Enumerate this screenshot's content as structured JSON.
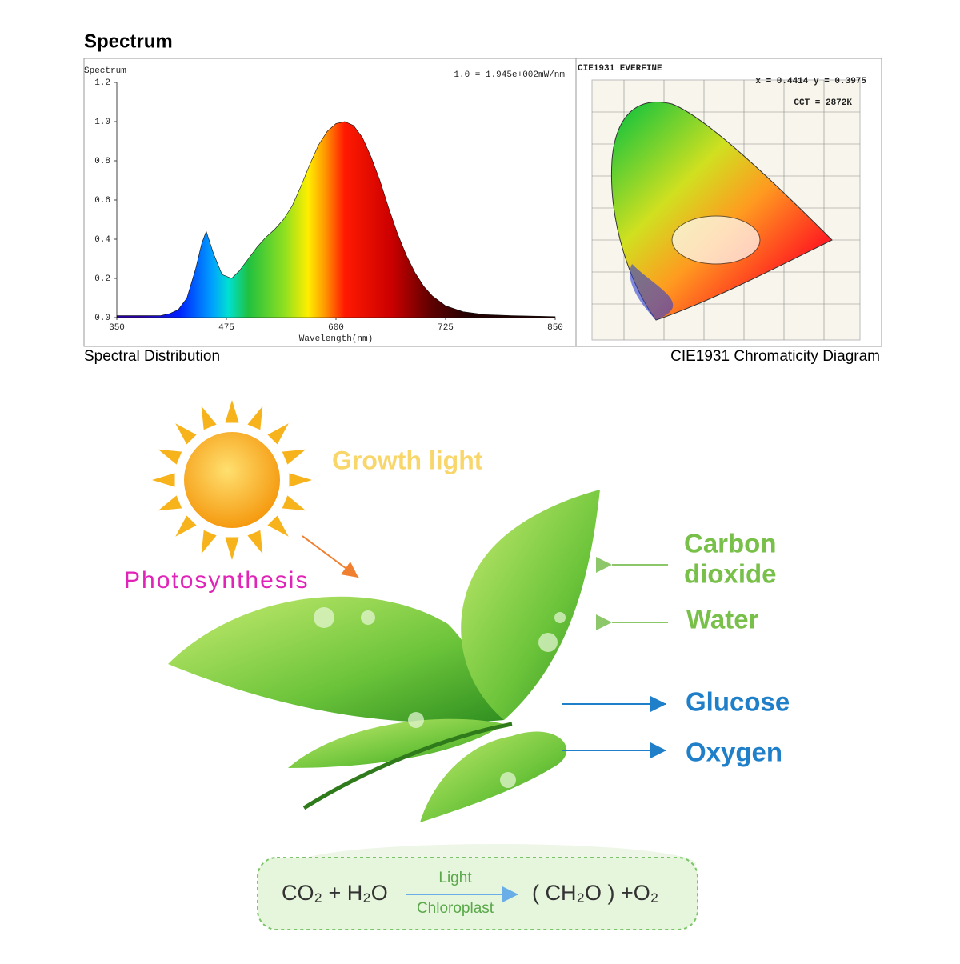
{
  "header": {
    "title": "Spectrum"
  },
  "chart_data": {
    "type": "area",
    "title": "Spectrum",
    "annotation": "1.0 = 1.945e+002mW/nm",
    "x_label": "Wavelength(nm)",
    "x": [
      350,
      380,
      400,
      410,
      420,
      430,
      440,
      447,
      452,
      460,
      470,
      481,
      490,
      500,
      510,
      520,
      530,
      540,
      550,
      560,
      570,
      580,
      590,
      600,
      610,
      620,
      630,
      640,
      650,
      660,
      670,
      680,
      690,
      700,
      710,
      725,
      745,
      770,
      800,
      850
    ],
    "values": [
      0.01,
      0.01,
      0.01,
      0.02,
      0.04,
      0.1,
      0.25,
      0.38,
      0.44,
      0.33,
      0.22,
      0.2,
      0.24,
      0.3,
      0.36,
      0.41,
      0.45,
      0.5,
      0.57,
      0.67,
      0.78,
      0.88,
      0.95,
      0.99,
      1.0,
      0.98,
      0.92,
      0.82,
      0.7,
      0.56,
      0.43,
      0.32,
      0.23,
      0.16,
      0.11,
      0.06,
      0.03,
      0.015,
      0.01,
      0.005
    ],
    "xlim": [
      350,
      850
    ],
    "xticks": [
      350,
      475,
      600,
      725,
      850
    ],
    "ylim": [
      0,
      1.2
    ],
    "yticks": [
      {
        "value": 0,
        "label": "0.0"
      },
      0.2,
      0.4,
      0.6,
      0.8,
      {
        "value": 1,
        "label": "1.0"
      },
      1.2
    ]
  },
  "captions": {
    "left": "Spectral Distribution",
    "right": "CIE1931 Chromaticity Diagram"
  },
  "cie": {
    "title": "CIE1931  EVERFINE",
    "coords": "x = 0.4414 y = 0.3975",
    "cct": "CCT = 2872K"
  },
  "illustration": {
    "growth": "Growth light",
    "photosynthesis": "Photosynthesis",
    "carbon": "Carbon",
    "dioxide": "dioxide",
    "water": "Water",
    "glucose": "Glucose",
    "oxygen": "Oxygen"
  },
  "equation": {
    "left": "CO₂ + H₂O",
    "top": "Light",
    "bottom": "Chloroplast",
    "right": "( CH₂O ) +O₂"
  }
}
